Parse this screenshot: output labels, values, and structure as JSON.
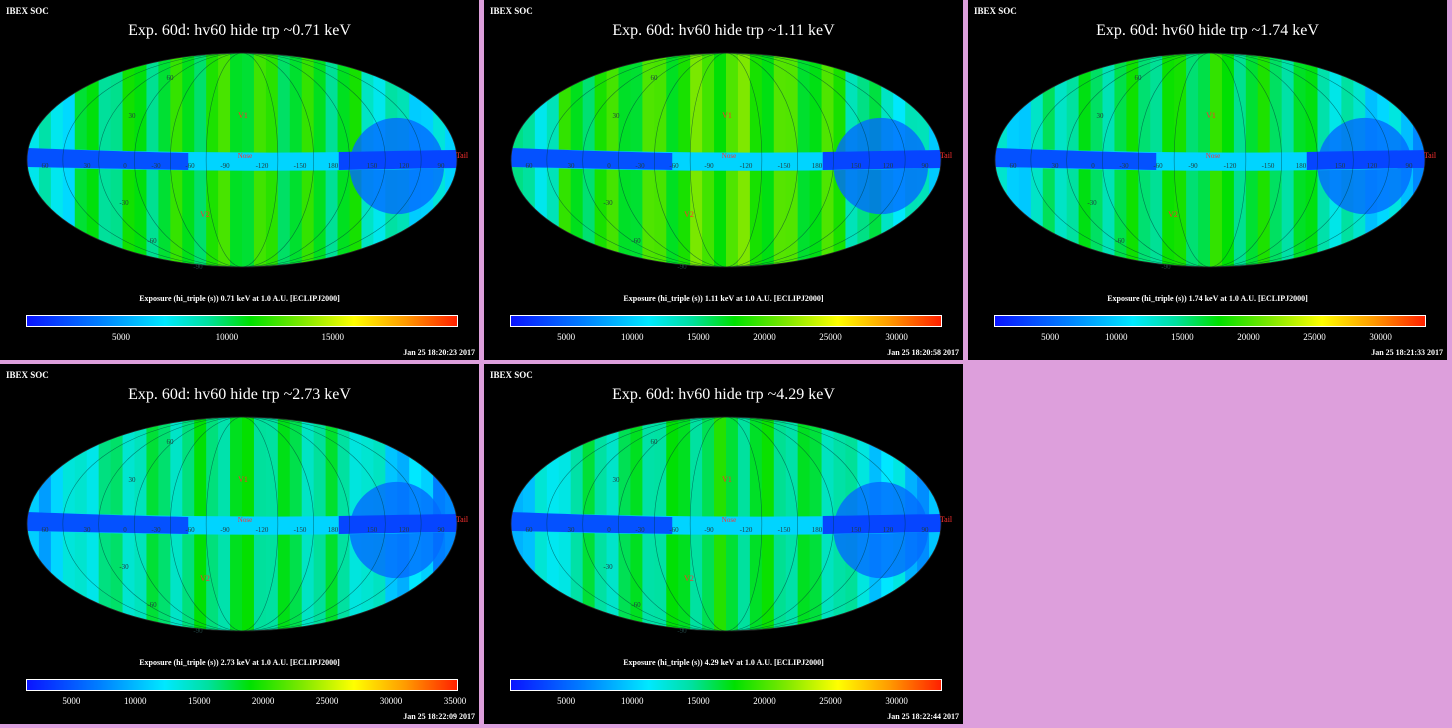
{
  "colors": {
    "background": "#dd9fdc",
    "panel": "#000000",
    "label_red": "#ff3030"
  },
  "panels": [
    {
      "header": "IBEX SOC",
      "title": "Exp.   60d: hv60 hide trp ~0.71 keV",
      "caption": "Exposure (hi_triple (s))  0.71 keV at 1.0 A.U. [ECLIPJ2000]",
      "colorbar_ticks": [
        "5000",
        "10000",
        "15000"
      ],
      "timestamp": "Jan 25 18:20:23 2017",
      "level": 0.45
    },
    {
      "header": "IBEX SOC",
      "title": "Exp.   60d: hv60 hide trp ~1.11 keV",
      "caption": "Exposure (hi_triple (s))  1.11 keV at 1.0 A.U. [ECLIPJ2000]",
      "colorbar_ticks": [
        "5000",
        "10000",
        "15000",
        "20000",
        "25000",
        "30000"
      ],
      "timestamp": "Jan 25 18:20:58 2017",
      "level": 0.5
    },
    {
      "header": "IBEX SOC",
      "title": "Exp.   60d: hv60 hide trp ~1.74 keV",
      "caption": "Exposure (hi_triple (s))  1.74 keV at 1.0 A.U. [ECLIPJ2000]",
      "colorbar_ticks": [
        "5000",
        "10000",
        "15000",
        "20000",
        "25000",
        "30000"
      ],
      "timestamp": "Jan 25 18:21:33 2017",
      "level": 0.42
    },
    {
      "header": "IBEX SOC",
      "title": "Exp.   60d: hv60 hide trp ~2.73 keV",
      "caption": "Exposure (hi_triple (s))  2.73 keV at 1.0 A.U. [ECLIPJ2000]",
      "colorbar_ticks": [
        "5000",
        "10000",
        "15000",
        "20000",
        "25000",
        "30000",
        "35000"
      ],
      "timestamp": "Jan 25 18:22:09 2017",
      "level": 0.38
    },
    {
      "header": "IBEX SOC",
      "title": "Exp.   60d: hv60 hide trp ~4.29 keV",
      "caption": "Exposure (hi_triple (s))  4.29 keV at 1.0 A.U. [ECLIPJ2000]",
      "colorbar_ticks": [
        "5000",
        "10000",
        "15000",
        "20000",
        "25000",
        "30000"
      ],
      "timestamp": "Jan 25 18:22:44 2017",
      "level": 0.4
    }
  ],
  "map_labels": {
    "markers": [
      "V1",
      "V2",
      "Nose",
      "Tail"
    ],
    "lat_labels": [
      "60",
      "30",
      "-30",
      "-60",
      "-90"
    ],
    "lon_labels": [
      "60",
      "30",
      "0",
      "-30",
      "-60",
      "-90",
      "-120",
      "-150",
      "180",
      "150",
      "120",
      "90"
    ]
  }
}
